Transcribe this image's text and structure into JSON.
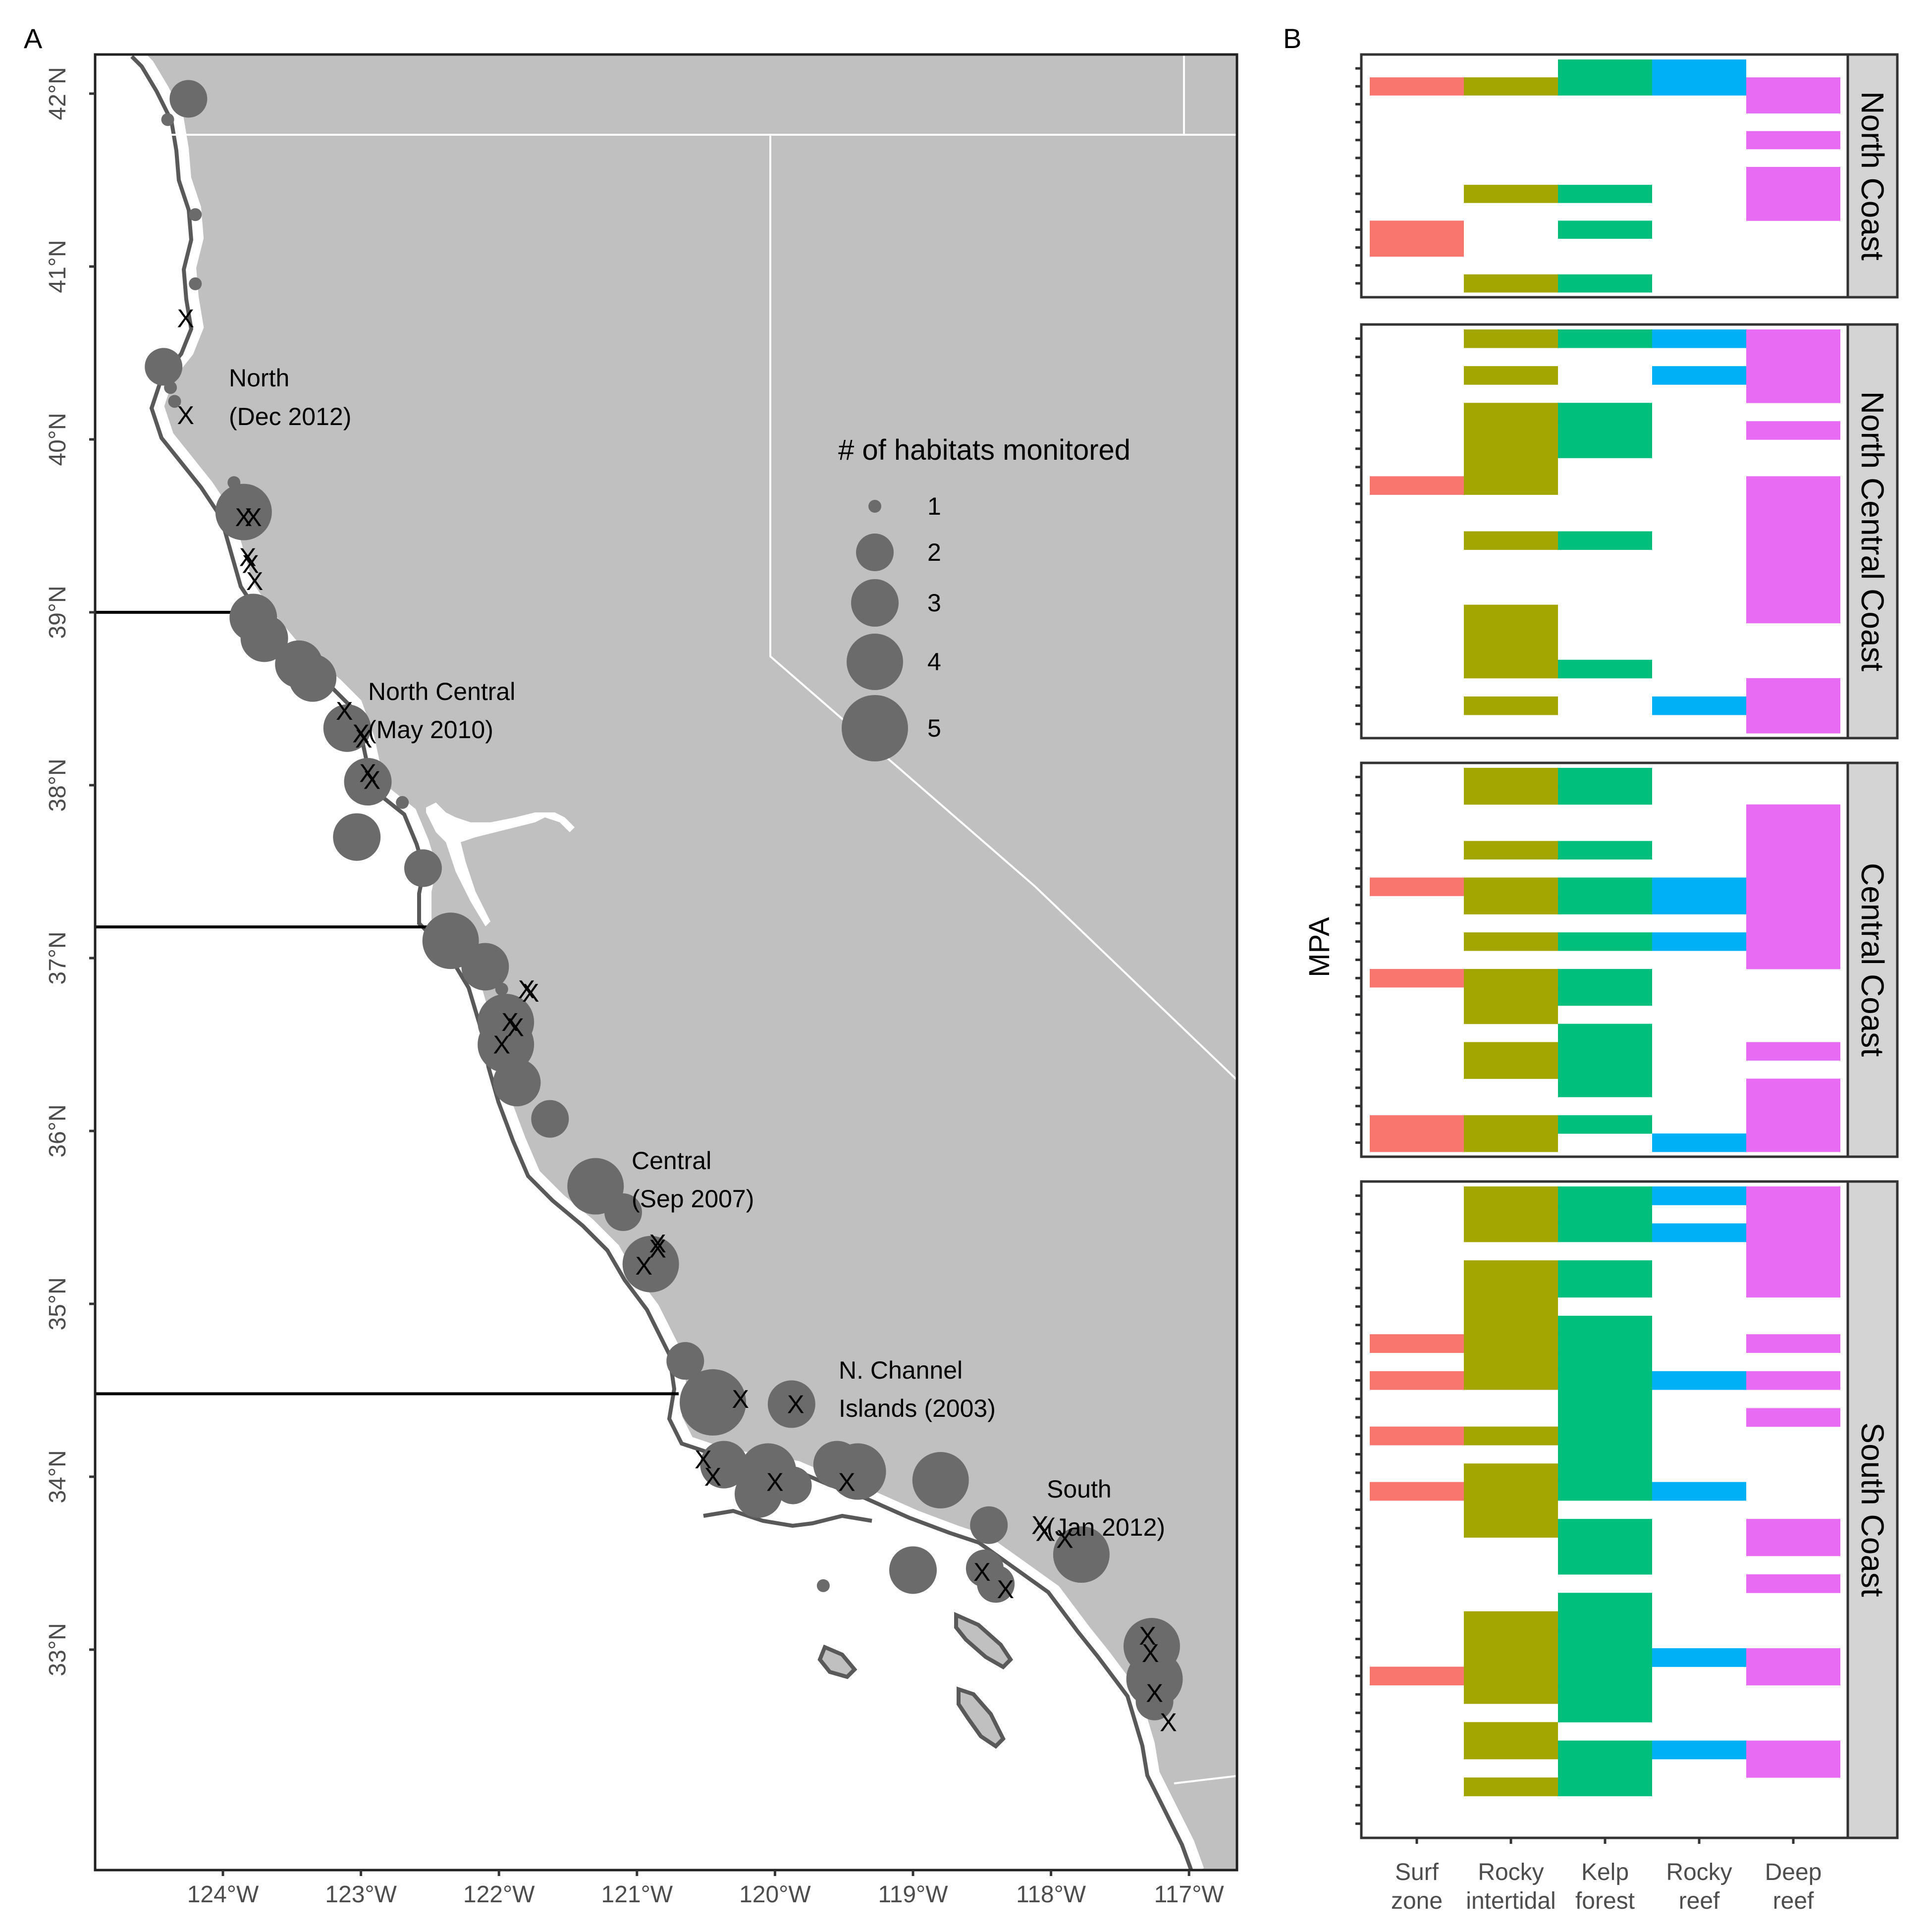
{
  "panels": {
    "a_label": "A",
    "b_label": "B"
  },
  "map": {
    "lat_ticks": [
      "33°N",
      "34°N",
      "35°N",
      "36°N",
      "37°N",
      "38°N",
      "39°N",
      "40°N",
      "41°N",
      "42°N"
    ],
    "lon_ticks": [
      "124°W",
      "123°W",
      "122°W",
      "121°W",
      "120°W",
      "119°W",
      "118°W",
      "117°W"
    ],
    "region_labels": [
      {
        "line1": "North",
        "line2": "(Dec 2012)"
      },
      {
        "line1": "North Central",
        "line2": "(May 2010)"
      },
      {
        "line1": "Central",
        "line2": "(Sep 2007)"
      },
      {
        "line1": "N. Channel",
        "line2": "Islands (2003)"
      },
      {
        "line1": "South",
        "line2": "(Jan 2012)"
      }
    ],
    "region_boundaries_lat": [
      39.0,
      37.18,
      34.48
    ],
    "land_color": "#c0c0c0",
    "marker_color": "#6b6b6b",
    "legend": {
      "title": "# of habitats monitored",
      "levels": [
        "1",
        "2",
        "3",
        "4",
        "5"
      ]
    },
    "sites": [
      {
        "lon": -124.25,
        "lat": 41.97,
        "n": 2
      },
      {
        "lon": -124.43,
        "lat": 40.42,
        "n": 2
      },
      {
        "lon": -123.85,
        "lat": 39.58,
        "n": 4
      },
      {
        "lon": -123.78,
        "lat": 38.97,
        "n": 3
      },
      {
        "lon": -123.7,
        "lat": 38.85,
        "n": 3
      },
      {
        "lon": -123.45,
        "lat": 38.7,
        "n": 3
      },
      {
        "lon": -123.35,
        "lat": 38.62,
        "n": 3
      },
      {
        "lon": -123.1,
        "lat": 38.33,
        "n": 3
      },
      {
        "lon": -122.95,
        "lat": 38.02,
        "n": 3
      },
      {
        "lon": -123.03,
        "lat": 37.7,
        "n": 3
      },
      {
        "lon": -122.55,
        "lat": 37.52,
        "n": 2
      },
      {
        "lon": -122.35,
        "lat": 37.1,
        "n": 4
      },
      {
        "lon": -122.1,
        "lat": 36.95,
        "n": 3
      },
      {
        "lon": -121.95,
        "lat": 36.63,
        "n": 4
      },
      {
        "lon": -121.95,
        "lat": 36.5,
        "n": 4
      },
      {
        "lon": -121.87,
        "lat": 36.28,
        "n": 3
      },
      {
        "lon": -121.63,
        "lat": 36.07,
        "n": 2
      },
      {
        "lon": -121.3,
        "lat": 35.68,
        "n": 4
      },
      {
        "lon": -121.1,
        "lat": 35.53,
        "n": 2
      },
      {
        "lon": -120.9,
        "lat": 35.23,
        "n": 4
      },
      {
        "lon": -120.65,
        "lat": 34.67,
        "n": 2
      },
      {
        "lon": -120.45,
        "lat": 34.43,
        "n": 5
      },
      {
        "lon": -119.88,
        "lat": 34.42,
        "n": 3
      },
      {
        "lon": -120.37,
        "lat": 34.07,
        "n": 3
      },
      {
        "lon": -120.05,
        "lat": 34.03,
        "n": 4
      },
      {
        "lon": -120.12,
        "lat": 33.9,
        "n": 3
      },
      {
        "lon": -119.87,
        "lat": 33.95,
        "n": 2
      },
      {
        "lon": -119.55,
        "lat": 34.07,
        "n": 3
      },
      {
        "lon": -119.4,
        "lat": 34.03,
        "n": 4
      },
      {
        "lon": -118.8,
        "lat": 33.98,
        "n": 4
      },
      {
        "lon": -118.45,
        "lat": 33.72,
        "n": 2
      },
      {
        "lon": -117.78,
        "lat": 33.55,
        "n": 4
      },
      {
        "lon": -119.0,
        "lat": 33.46,
        "n": 3
      },
      {
        "lon": -118.48,
        "lat": 33.47,
        "n": 2
      },
      {
        "lon": -118.4,
        "lat": 33.38,
        "n": 2
      },
      {
        "lon": -119.65,
        "lat": 33.37,
        "n": 1
      },
      {
        "lon": -117.27,
        "lat": 33.02,
        "n": 4
      },
      {
        "lon": -117.25,
        "lat": 32.83,
        "n": 4
      },
      {
        "lon": -117.25,
        "lat": 32.7,
        "n": 2
      },
      {
        "lon": -124.2,
        "lat": 41.3,
        "n": 1
      },
      {
        "lon": -124.4,
        "lat": 41.85,
        "n": 1
      },
      {
        "lon": -124.2,
        "lat": 40.9,
        "n": 1
      },
      {
        "lon": -124.38,
        "lat": 40.3,
        "n": 1
      },
      {
        "lon": -124.35,
        "lat": 40.22,
        "n": 1
      },
      {
        "lon": -123.92,
        "lat": 39.75,
        "n": 1
      },
      {
        "lon": -122.7,
        "lat": 37.9,
        "n": 1
      },
      {
        "lon": -121.98,
        "lat": 36.82,
        "n": 1
      }
    ],
    "xmarks": [
      {
        "lon": -124.27,
        "lat": 40.7
      },
      {
        "lon": -124.27,
        "lat": 40.14
      },
      {
        "lon": -123.85,
        "lat": 39.55
      },
      {
        "lon": -123.78,
        "lat": 39.55
      },
      {
        "lon": -123.82,
        "lat": 39.32
      },
      {
        "lon": -123.8,
        "lat": 39.28
      },
      {
        "lon": -123.77,
        "lat": 39.18
      },
      {
        "lon": -123.12,
        "lat": 38.43
      },
      {
        "lon": -123.0,
        "lat": 38.3
      },
      {
        "lon": -122.98,
        "lat": 38.27
      },
      {
        "lon": -122.95,
        "lat": 38.07
      },
      {
        "lon": -122.92,
        "lat": 38.03
      },
      {
        "lon": -121.8,
        "lat": 36.82
      },
      {
        "lon": -121.77,
        "lat": 36.8
      },
      {
        "lon": -121.92,
        "lat": 36.63
      },
      {
        "lon": -121.88,
        "lat": 36.6
      },
      {
        "lon": -121.98,
        "lat": 36.5
      },
      {
        "lon": -120.85,
        "lat": 35.35
      },
      {
        "lon": -120.85,
        "lat": 35.32
      },
      {
        "lon": -120.95,
        "lat": 35.22
      },
      {
        "lon": -120.25,
        "lat": 34.45
      },
      {
        "lon": -119.85,
        "lat": 34.42
      },
      {
        "lon": -120.52,
        "lat": 34.1
      },
      {
        "lon": -120.45,
        "lat": 34.0
      },
      {
        "lon": -120.0,
        "lat": 33.97
      },
      {
        "lon": -119.48,
        "lat": 33.97
      },
      {
        "lon": -118.08,
        "lat": 33.72
      },
      {
        "lon": -118.05,
        "lat": 33.68
      },
      {
        "lon": -117.9,
        "lat": 33.64
      },
      {
        "lon": -118.5,
        "lat": 33.45
      },
      {
        "lon": -118.33,
        "lat": 33.35
      },
      {
        "lon": -117.3,
        "lat": 33.08
      },
      {
        "lon": -117.28,
        "lat": 32.98
      },
      {
        "lon": -117.25,
        "lat": 32.75
      },
      {
        "lon": -117.15,
        "lat": 32.58
      }
    ]
  },
  "heatmap": {
    "ylabel": "MPA",
    "x_labels": [
      {
        "line1": "Surf",
        "line2": "zone"
      },
      {
        "line1": "Rocky",
        "line2": "intertidal"
      },
      {
        "line1": "Kelp",
        "line2": "forest"
      },
      {
        "line1": "Rocky",
        "line2": "reef"
      },
      {
        "line1": "Deep",
        "line2": "reef"
      }
    ],
    "colors": [
      "#F8766D",
      "#A3A500",
      "#00BF7D",
      "#00B0F6",
      "#E76BF3"
    ],
    "facets": [
      {
        "name": "North Coast",
        "n_rows": 13,
        "cells": {
          "0": [
            1,
            9,
            10
          ],
          "1": [
            1,
            7,
            12
          ],
          "2": [
            0,
            1,
            7,
            9,
            12
          ],
          "3": [
            0,
            1
          ],
          "4": [
            1,
            2,
            4,
            6,
            7,
            8
          ]
        }
      },
      {
        "name": "North Central Coast",
        "n_rows": 22,
        "cells": {
          "0": [
            8
          ],
          "1": [
            0,
            2,
            4,
            5,
            6,
            7,
            8,
            11,
            15,
            16,
            17,
            18,
            20
          ],
          "2": [
            0,
            4,
            5,
            6,
            11,
            18
          ],
          "3": [
            0,
            2,
            20
          ],
          "4": [
            0,
            1,
            2,
            3,
            5,
            8,
            9,
            10,
            11,
            12,
            13,
            14,
            15,
            19,
            20,
            21
          ]
        }
      },
      {
        "name": "Central Coast",
        "n_rows": 21,
        "cells": {
          "0": [
            6,
            11,
            19,
            20
          ],
          "1": [
            0,
            1,
            4,
            6,
            7,
            9,
            11,
            12,
            13,
            15,
            16,
            19,
            20
          ],
          "2": [
            0,
            1,
            4,
            6,
            7,
            9,
            11,
            12,
            14,
            15,
            16,
            17,
            19
          ],
          "3": [
            6,
            7,
            9,
            20
          ],
          "4": [
            2,
            3,
            4,
            5,
            6,
            7,
            8,
            9,
            10,
            15,
            17,
            18,
            19,
            20
          ]
        }
      },
      {
        "name": "South Coast",
        "n_rows": 35,
        "cells": {
          "0": [
            8,
            10,
            13,
            16,
            26
          ],
          "1": [
            0,
            1,
            2,
            4,
            5,
            6,
            7,
            8,
            9,
            10,
            13,
            15,
            16,
            17,
            18,
            23,
            24,
            25,
            26,
            27,
            29,
            30,
            32
          ],
          "2": [
            0,
            1,
            2,
            4,
            5,
            7,
            8,
            9,
            10,
            11,
            12,
            13,
            14,
            15,
            16,
            18,
            19,
            20,
            22,
            23,
            24,
            25,
            26,
            27,
            28,
            30,
            31,
            32
          ],
          "3": [
            0,
            2,
            10,
            16,
            25,
            30
          ],
          "4": [
            0,
            1,
            2,
            3,
            4,
            5,
            8,
            10,
            12,
            18,
            19,
            21,
            25,
            26,
            30,
            31
          ]
        }
      }
    ]
  }
}
